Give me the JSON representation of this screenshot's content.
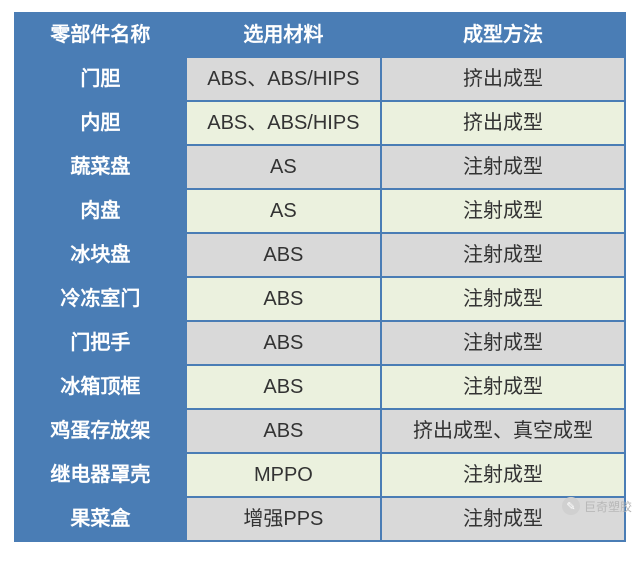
{
  "table": {
    "header": {
      "bg": "#4a7db5",
      "fg": "#ffffff",
      "cols": [
        "零部件名称",
        "选用材料",
        "成型方法"
      ]
    },
    "col_widths": [
      "28%",
      "32%",
      "40%"
    ],
    "row_alt_colors": {
      "odd": "#d9d9d9",
      "even": "#ebf1de"
    },
    "border_color": "#4a7db5",
    "font_size": 20,
    "rows": [
      {
        "part": "门胆",
        "material": "ABS、ABS/HIPS",
        "method": "挤出成型"
      },
      {
        "part": "内胆",
        "material": "ABS、ABS/HIPS",
        "method": "挤出成型"
      },
      {
        "part": "蔬菜盘",
        "material": "AS",
        "method": "注射成型"
      },
      {
        "part": "肉盘",
        "material": "AS",
        "method": "注射成型"
      },
      {
        "part": "冰块盘",
        "material": "ABS",
        "method": "注射成型"
      },
      {
        "part": "冷冻室门",
        "material": "ABS",
        "method": "注射成型"
      },
      {
        "part": "门把手",
        "material": "ABS",
        "method": "注射成型"
      },
      {
        "part": "冰箱顶框",
        "material": "ABS",
        "method": "注射成型"
      },
      {
        "part": "鸡蛋存放架",
        "material": "ABS",
        "method": "挤出成型、真空成型"
      },
      {
        "part": "继电器罩壳",
        "material": "MPPO",
        "method": "注射成型"
      },
      {
        "part": "果菜盒",
        "material": "增强PPS",
        "method": "注射成型"
      }
    ]
  },
  "watermark": {
    "text": "巨奇塑胶",
    "icon_glyph": "✎"
  }
}
